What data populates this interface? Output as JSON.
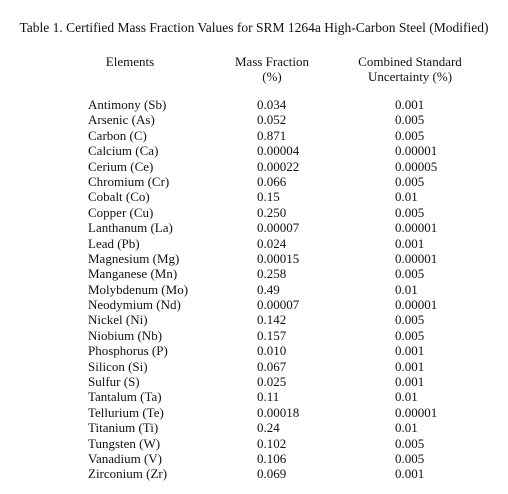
{
  "caption": "Table 1.  Certified Mass Fraction Values for SRM 1264a High-Carbon Steel (Modified)",
  "headers": {
    "elements": "Elements",
    "mass_fraction_line1": "Mass Fraction",
    "mass_fraction_line2": "(%)",
    "uncertainty_line1": "Combined Standard",
    "uncertainty_line2": "Uncertainty (%)"
  },
  "rows": [
    {
      "element": "Antimony (Sb)",
      "mass_fraction": "0.034",
      "uncertainty": "0.001"
    },
    {
      "element": "Arsenic (As)",
      "mass_fraction": "0.052",
      "uncertainty": "0.005"
    },
    {
      "element": "Carbon (C)",
      "mass_fraction": "0.871",
      "uncertainty": "0.005"
    },
    {
      "element": "Calcium (Ca)",
      "mass_fraction": "0.00004",
      "uncertainty": "0.00001"
    },
    {
      "element": "Cerium (Ce)",
      "mass_fraction": "0.00022",
      "uncertainty": "0.00005"
    },
    {
      "element": "Chromium (Cr)",
      "mass_fraction": "0.066",
      "uncertainty": "0.005"
    },
    {
      "element": "Cobalt (Co)",
      "mass_fraction": "0.15",
      "uncertainty": "0.01"
    },
    {
      "element": "Copper (Cu)",
      "mass_fraction": "0.250",
      "uncertainty": "0.005"
    },
    {
      "element": "Lanthanum (La)",
      "mass_fraction": "0.00007",
      "uncertainty": "0.00001"
    },
    {
      "element": "Lead (Pb)",
      "mass_fraction": "0.024",
      "uncertainty": "0.001"
    },
    {
      "element": "Magnesium (Mg)",
      "mass_fraction": "0.00015",
      "uncertainty": "0.00001"
    },
    {
      "element": "Manganese (Mn)",
      "mass_fraction": "0.258",
      "uncertainty": "0.005"
    },
    {
      "element": "Molybdenum (Mo)",
      "mass_fraction": "0.49",
      "uncertainty": "0.01"
    },
    {
      "element": "Neodymium (Nd)",
      "mass_fraction": "0.00007",
      "uncertainty": "0.00001"
    },
    {
      "element": "Nickel (Ni)",
      "mass_fraction": "0.142",
      "uncertainty": "0.005"
    },
    {
      "element": "Niobium (Nb)",
      "mass_fraction": "0.157",
      "uncertainty": "0.005"
    },
    {
      "element": "Phosphorus (P)",
      "mass_fraction": "0.010",
      "uncertainty": "0.001"
    },
    {
      "element": "Silicon (Si)",
      "mass_fraction": "0.067",
      "uncertainty": "0.001"
    },
    {
      "element": "Sulfur (S)",
      "mass_fraction": "0.025",
      "uncertainty": "0.001"
    },
    {
      "element": "Tantalum (Ta)",
      "mass_fraction": "0.11",
      "uncertainty": "0.01"
    },
    {
      "element": "Tellurium (Te)",
      "mass_fraction": "0.00018",
      "uncertainty": "0.00001"
    },
    {
      "element": "Titanium (Ti)",
      "mass_fraction": "0.24",
      "uncertainty": "0.01"
    },
    {
      "element": "Tungsten (W)",
      "mass_fraction": "0.102",
      "uncertainty": "0.005"
    },
    {
      "element": "Vanadium (V)",
      "mass_fraction": "0.106",
      "uncertainty": "0.005"
    },
    {
      "element": "Zirconium (Zr)",
      "mass_fraction": "0.069",
      "uncertainty": "0.001"
    }
  ]
}
